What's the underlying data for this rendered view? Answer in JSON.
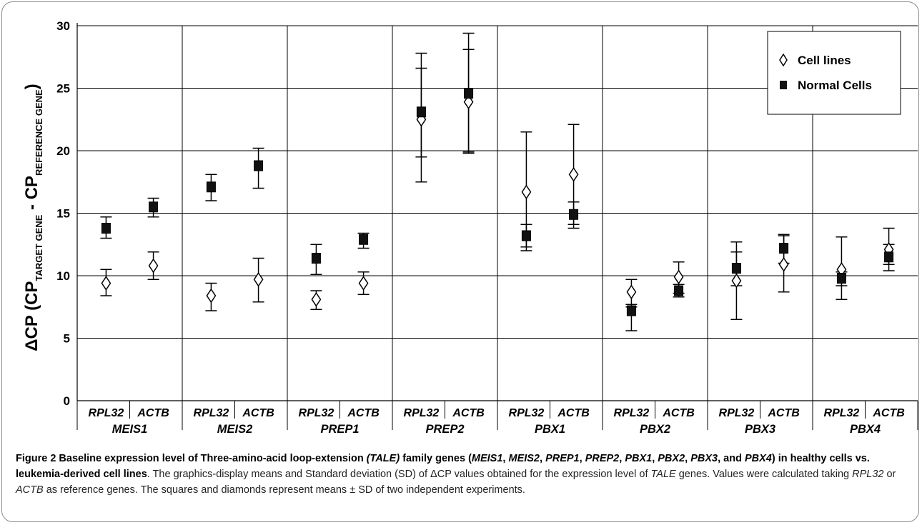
{
  "chart_data": {
    "type": "scatter",
    "ylabel": {
      "prefix": "ΔCP (CP",
      "sub1": "TARGET GENE",
      "mid": " - CP",
      "sub2": "REFERENCE GENE",
      "suffix": ")"
    },
    "ylim": [
      0,
      30
    ],
    "yticks": [
      "0",
      "5",
      "10",
      "15",
      "20",
      "25",
      "30"
    ],
    "grid": true,
    "legend_position": "top-right",
    "groups": [
      "MEIS1",
      "MEIS2",
      "PREP1",
      "PREP2",
      "PBX1",
      "PBX2",
      "PBX3",
      "PBX4"
    ],
    "reference_genes": [
      "RPL32",
      "ACTB"
    ],
    "series": [
      {
        "name": "Cell lines",
        "marker": "diamond",
        "points": [
          {
            "group": "MEIS1",
            "ref": "RPL32",
            "mean": 9.4,
            "low": 8.4,
            "high": 10.5
          },
          {
            "group": "MEIS1",
            "ref": "ACTB",
            "mean": 10.8,
            "low": 9.7,
            "high": 11.9
          },
          {
            "group": "MEIS2",
            "ref": "RPL32",
            "mean": 8.4,
            "low": 7.2,
            "high": 9.4
          },
          {
            "group": "MEIS2",
            "ref": "ACTB",
            "mean": 9.7,
            "low": 7.9,
            "high": 11.4
          },
          {
            "group": "PREP1",
            "ref": "RPL32",
            "mean": 8.1,
            "low": 7.3,
            "high": 8.8
          },
          {
            "group": "PREP1",
            "ref": "ACTB",
            "mean": 9.4,
            "low": 8.5,
            "high": 10.3
          },
          {
            "group": "PREP2",
            "ref": "RPL32",
            "mean": 22.5,
            "low": 17.5,
            "high": 27.8
          },
          {
            "group": "PREP2",
            "ref": "ACTB",
            "mean": 23.9,
            "low": 19.9,
            "high": 29.4
          },
          {
            "group": "PBX1",
            "ref": "RPL32",
            "mean": 16.7,
            "low": 12.0,
            "high": 21.5
          },
          {
            "group": "PBX1",
            "ref": "ACTB",
            "mean": 18.1,
            "low": 14.1,
            "high": 22.1
          },
          {
            "group": "PBX2",
            "ref": "RPL32",
            "mean": 8.7,
            "low": 7.5,
            "high": 9.7
          },
          {
            "group": "PBX2",
            "ref": "ACTB",
            "mean": 9.9,
            "low": 8.6,
            "high": 11.1
          },
          {
            "group": "PBX3",
            "ref": "RPL32",
            "mean": 9.6,
            "low": 6.5,
            "high": 11.9
          },
          {
            "group": "PBX3",
            "ref": "ACTB",
            "mean": 10.9,
            "low": 8.7,
            "high": 13.2
          },
          {
            "group": "PBX4",
            "ref": "RPL32",
            "mean": 10.5,
            "low": 8.1,
            "high": 13.1
          },
          {
            "group": "PBX4",
            "ref": "ACTB",
            "mean": 12.1,
            "low": 10.9,
            "high": 12.5
          }
        ]
      },
      {
        "name": "Normal Cells",
        "marker": "square",
        "points": [
          {
            "group": "MEIS1",
            "ref": "RPL32",
            "mean": 13.8,
            "low": 13.0,
            "high": 14.7
          },
          {
            "group": "MEIS1",
            "ref": "ACTB",
            "mean": 15.5,
            "low": 14.7,
            "high": 16.2
          },
          {
            "group": "MEIS2",
            "ref": "RPL32",
            "mean": 17.1,
            "low": 16.0,
            "high": 18.1
          },
          {
            "group": "MEIS2",
            "ref": "ACTB",
            "mean": 18.8,
            "low": 17.0,
            "high": 20.2
          },
          {
            "group": "PREP1",
            "ref": "RPL32",
            "mean": 11.4,
            "low": 10.1,
            "high": 12.5
          },
          {
            "group": "PREP1",
            "ref": "ACTB",
            "mean": 12.9,
            "low": 12.2,
            "high": 13.4
          },
          {
            "group": "PREP2",
            "ref": "RPL32",
            "mean": 23.1,
            "low": 19.5,
            "high": 26.6
          },
          {
            "group": "PREP2",
            "ref": "ACTB",
            "mean": 24.6,
            "low": 19.8,
            "high": 28.1
          },
          {
            "group": "PBX1",
            "ref": "RPL32",
            "mean": 13.2,
            "low": 12.3,
            "high": 14.1
          },
          {
            "group": "PBX1",
            "ref": "ACTB",
            "mean": 14.9,
            "low": 13.8,
            "high": 15.9
          },
          {
            "group": "PBX2",
            "ref": "RPL32",
            "mean": 7.2,
            "low": 5.6,
            "high": 7.7
          },
          {
            "group": "PBX2",
            "ref": "ACTB",
            "mean": 8.8,
            "low": 8.3,
            "high": 9.3
          },
          {
            "group": "PBX3",
            "ref": "RPL32",
            "mean": 10.6,
            "low": 9.2,
            "high": 12.7
          },
          {
            "group": "PBX3",
            "ref": "ACTB",
            "mean": 12.2,
            "low": 11.0,
            "high": 13.3
          },
          {
            "group": "PBX4",
            "ref": "RPL32",
            "mean": 9.8,
            "low": 9.2,
            "high": 10.3
          },
          {
            "group": "PBX4",
            "ref": "ACTB",
            "mean": 11.5,
            "low": 10.4,
            "high": 13.8
          }
        ]
      }
    ]
  },
  "caption": {
    "title_parts": [
      {
        "t": "Figure 2 Baseline expression level of Three-amino-acid loop-extension ",
        "i": false
      },
      {
        "t": "(TALE)",
        "i": true
      },
      {
        "t": " family genes (",
        "i": false
      },
      {
        "t": "MEIS1",
        "i": true
      },
      {
        "t": ", ",
        "i": false
      },
      {
        "t": "MEIS2",
        "i": true
      },
      {
        "t": ", ",
        "i": false
      },
      {
        "t": "PREP1",
        "i": true
      },
      {
        "t": ", ",
        "i": false
      },
      {
        "t": "PREP2",
        "i": true
      },
      {
        "t": ", ",
        "i": false
      },
      {
        "t": "PBX1",
        "i": true
      },
      {
        "t": ", ",
        "i": false
      },
      {
        "t": "PBX2",
        "i": true
      },
      {
        "t": ", ",
        "i": false
      },
      {
        "t": "PBX3",
        "i": true
      },
      {
        "t": ", and ",
        "i": false
      },
      {
        "t": "PBX4",
        "i": true
      },
      {
        "t": ") in healthy cells vs. leukemia-derived cell lines",
        "i": false
      }
    ],
    "body_parts": [
      {
        "t": ". The graphics-display means and Standard deviation (SD) of ΔCP values obtained for the expression level of ",
        "i": false
      },
      {
        "t": "TALE",
        "i": true
      },
      {
        "t": " genes. Values were calculated taking ",
        "i": false
      },
      {
        "t": "RPL32",
        "i": true
      },
      {
        "t": " or ",
        "i": false
      },
      {
        "t": "ACTB",
        "i": true
      },
      {
        "t": " as reference genes. The squares and diamonds represent means ± SD of two independent experiments.",
        "i": false
      }
    ]
  }
}
